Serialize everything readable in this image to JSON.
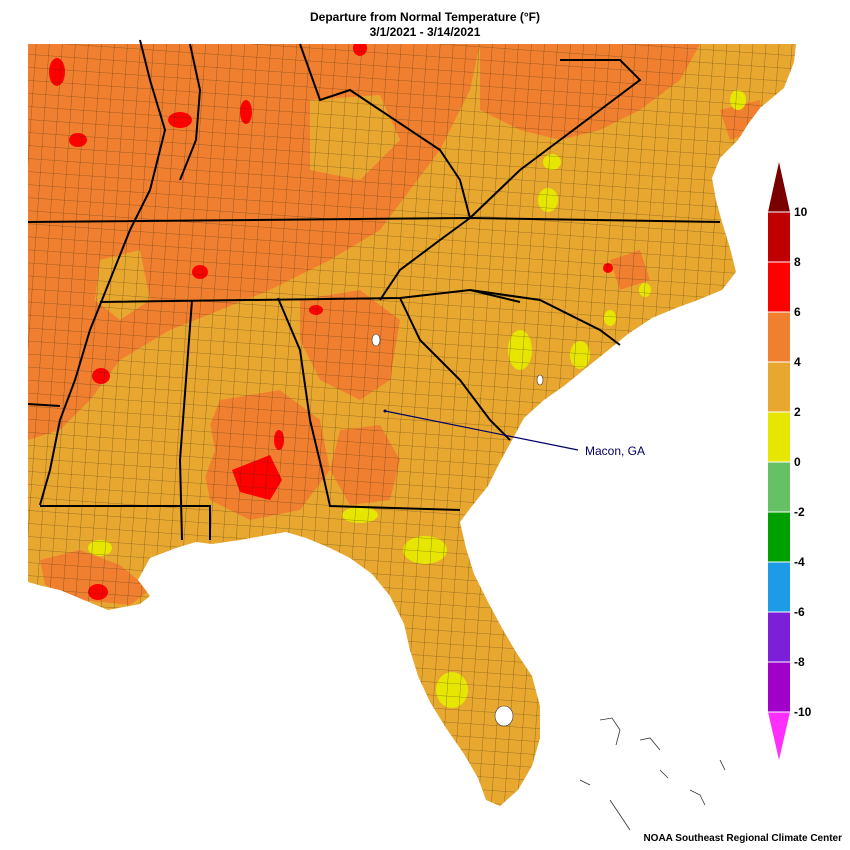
{
  "title": "Departure from Normal Temperature (°F)",
  "subtitle": "3/1/2021 - 3/14/2021",
  "annotation": {
    "label": "Macon, GA"
  },
  "legend": {
    "ticks": [
      "10",
      "8",
      "6",
      "4",
      "2",
      "0",
      "-2",
      "-4",
      "-6",
      "-8",
      "-10"
    ],
    "bins": [
      {
        "range": "8 to 10",
        "color": "#c00000"
      },
      {
        "range": "6 to 8",
        "color": "#ff0000"
      },
      {
        "range": "4 to 6",
        "color": "#f08030"
      },
      {
        "range": "2 to 4",
        "color": "#e8a830"
      },
      {
        "range": "0 to 2",
        "color": "#e6e600"
      },
      {
        "range": "-2 to 0",
        "color": "#66c066"
      },
      {
        "range": "-4 to -2",
        "color": "#00a000"
      },
      {
        "range": "-6 to -4",
        "color": "#1e9be6"
      },
      {
        "range": "-8 to -6",
        "color": "#7b20d8"
      },
      {
        "range": "-10 to -8",
        "color": "#a000c8"
      }
    ],
    "top_arrow_color": "#7a0000",
    "bottom_arrow_color": "#ff30ff"
  },
  "credit": "NOAA Southeast Regional Climate Center"
}
